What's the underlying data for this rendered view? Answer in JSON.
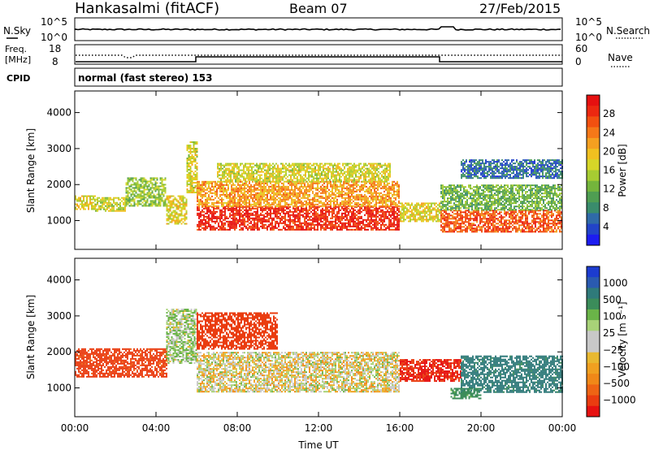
{
  "header": {
    "station": "Hankasalmi (fitACF)",
    "beam": "Beam 07",
    "date": "27/Feb/2015"
  },
  "strip": {
    "nsky_label": "N.Sky",
    "nsky_tick_top": "10^5",
    "nsky_tick_bottom": "10^0",
    "nsearch_label": "N.Search",
    "nsearch_tick_top": "10^5",
    "nsearch_tick_bottom": "10^0",
    "freq_label_1": "Freq.",
    "freq_label_2": "[MHz]",
    "freq_tick_top": "18",
    "freq_tick_bottom": "8",
    "nave_label": "Nave",
    "nave_tick_top": "60",
    "nave_tick_bottom": "0",
    "cpid_label": "CPID",
    "cpid_text": "normal (fast stereo) 153"
  },
  "chart_data": [
    {
      "type": "heatmap",
      "name_key": "power",
      "ylabel": "Slant Range [km]",
      "xlabel": "",
      "x_range_hours": [
        0,
        24
      ],
      "ylim": [
        200,
        4600
      ],
      "y_ticks": [
        1000,
        2000,
        3000,
        4000
      ],
      "x_ticks": [
        0,
        4,
        8,
        12,
        16,
        20,
        24
      ],
      "colorbar": {
        "label": "Power [dB]",
        "ticks": [
          "4",
          "8",
          "12",
          "16",
          "20",
          "24",
          "28"
        ],
        "range": [
          0,
          32
        ],
        "colors": [
          "#1c1cf0",
          "#2244c8",
          "#2f6aa8",
          "#3a8c6c",
          "#4f9e52",
          "#74b53c",
          "#a6cc32",
          "#d6d628",
          "#f0c020",
          "#f5a020",
          "#f57818",
          "#f25010",
          "#ec2810",
          "#e61010"
        ]
      },
      "regions": [
        {
          "x": [
            0.0,
            1.0
          ],
          "range": [
            1300,
            1700
          ],
          "value": 18
        },
        {
          "x": [
            1.0,
            2.5
          ],
          "range": [
            1250,
            1650
          ],
          "value": 16
        },
        {
          "x": [
            2.5,
            4.5
          ],
          "range": [
            1400,
            2200
          ],
          "value": 14
        },
        {
          "x": [
            4.5,
            5.5
          ],
          "range": [
            900,
            1700
          ],
          "value": 18
        },
        {
          "x": [
            5.5,
            6.0
          ],
          "range": [
            1800,
            3200
          ],
          "value": 17
        },
        {
          "x": [
            6.0,
            16.0
          ],
          "range": [
            750,
            1400
          ],
          "value": 29
        },
        {
          "x": [
            6.0,
            16.0
          ],
          "range": [
            1400,
            2100
          ],
          "value": 22
        },
        {
          "x": [
            7.0,
            15.5
          ],
          "range": [
            2100,
            2600
          ],
          "value": 17
        },
        {
          "x": [
            16.0,
            18.0
          ],
          "range": [
            1000,
            1500
          ],
          "value": 18
        },
        {
          "x": [
            18.0,
            24.0
          ],
          "range": [
            700,
            1300
          ],
          "value": 26
        },
        {
          "x": [
            18.0,
            24.0
          ],
          "range": [
            1300,
            2000
          ],
          "value": 12
        },
        {
          "x": [
            19.0,
            24.0
          ],
          "range": [
            2200,
            2700
          ],
          "value": 6
        }
      ]
    },
    {
      "type": "heatmap",
      "name_key": "velocity",
      "ylabel": "Slant Range [km]",
      "xlabel": "Time UT",
      "x_range_hours": [
        0,
        24
      ],
      "ylim": [
        200,
        4600
      ],
      "y_ticks": [
        1000,
        2000,
        3000,
        4000
      ],
      "x_ticks": [
        0,
        4,
        8,
        12,
        16,
        20,
        24
      ],
      "x_tick_labels": [
        "00:00",
        "04:00",
        "08:00",
        "12:00",
        "16:00",
        "20:00",
        "00:00"
      ],
      "colorbar": {
        "label": "Velocity [m s⁻¹]",
        "ticks": [
          "1000",
          "500",
          "100",
          "25",
          "−25",
          "−100",
          "−500",
          "−1000"
        ],
        "colors": [
          "#1c3cd0",
          "#2a5ab0",
          "#2f7a7a",
          "#3b8c5a",
          "#6ab448",
          "#a8d278",
          "#c8c8c8",
          "#c8c8c8",
          "#e8b830",
          "#f0a020",
          "#f08818",
          "#ee6414",
          "#ea3c10",
          "#e61010"
        ]
      },
      "regions": [
        {
          "x": [
            0.0,
            4.5
          ],
          "range": [
            1300,
            2100
          ],
          "value": -300
        },
        {
          "x": [
            4.5,
            6.0
          ],
          "range": [
            1700,
            3200
          ],
          "value": 40
        },
        {
          "x": [
            6.0,
            16.0
          ],
          "range": [
            900,
            2000
          ],
          "value": 0
        },
        {
          "x": [
            6.0,
            10.0
          ],
          "range": [
            2100,
            3100
          ],
          "value": -400
        },
        {
          "x": [
            16.0,
            19.0
          ],
          "range": [
            1200,
            1800
          ],
          "value": -500
        },
        {
          "x": [
            19.0,
            24.0
          ],
          "range": [
            900,
            1900
          ],
          "value": 300
        },
        {
          "x": [
            18.5,
            20.0
          ],
          "range": [
            700,
            1000
          ],
          "value": 150
        }
      ]
    }
  ]
}
